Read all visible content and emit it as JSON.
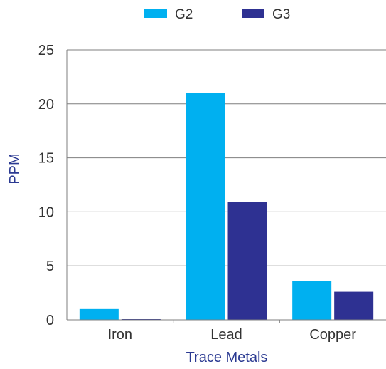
{
  "chart_data": {
    "type": "bar",
    "title": "",
    "xlabel": "Trace Metals",
    "ylabel": "PPM",
    "categories": [
      "Iron",
      "Lead",
      "Copper"
    ],
    "series": [
      {
        "name": "G2",
        "color": "#00b0f0",
        "values": [
          1.0,
          21.0,
          3.6
        ]
      },
      {
        "name": "G3",
        "color": "#2e3192",
        "values": [
          0.05,
          10.9,
          2.6
        ]
      }
    ],
    "ylim": [
      0,
      25
    ],
    "yticks": [
      0,
      5,
      10,
      15,
      20,
      25
    ],
    "grid": true,
    "legend_position": "top-center"
  }
}
